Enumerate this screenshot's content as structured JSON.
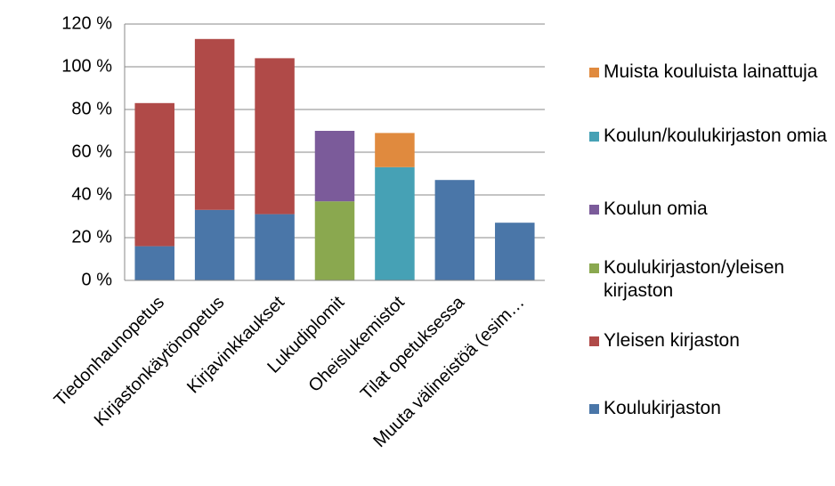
{
  "chart_data": {
    "type": "stacked_bar",
    "categories": [
      "Tiedonhaunopetus",
      "Kirjastonkäytönopetus",
      "Kirjavinkkaukset",
      "Lukudiplomit",
      "Oheislukemistot",
      "Tilat opetuksessa",
      "Muuta välineistöä (esim…"
    ],
    "series": [
      {
        "name": "Koulukirjaston",
        "color": "#4a76a8",
        "values": [
          16,
          33,
          31,
          null,
          null,
          47,
          27
        ]
      },
      {
        "name": "Yleisen kirjaston",
        "color": "#b04a48",
        "values": [
          67,
          80,
          73,
          null,
          null,
          null,
          null
        ]
      },
      {
        "name": "Koulukirjaston/yleisen kirjaston",
        "color": "#8aa84f",
        "values": [
          null,
          null,
          null,
          37,
          null,
          null,
          null
        ]
      },
      {
        "name": "Koulun omia",
        "color": "#7b5b9a",
        "values": [
          null,
          null,
          null,
          33,
          null,
          null,
          null
        ]
      },
      {
        "name": "Koulun/koulukirjaston omia",
        "color": "#46a1b5",
        "values": [
          null,
          null,
          null,
          null,
          53,
          null,
          null
        ]
      },
      {
        "name": "Muista kouluista lainattuja",
        "color": "#e08a3e",
        "values": [
          null,
          null,
          null,
          null,
          16,
          null,
          null
        ]
      }
    ],
    "ylim": [
      0,
      120
    ],
    "yticks": [
      {
        "value": 0,
        "label": "0 %"
      },
      {
        "value": 20,
        "label": "20 %"
      },
      {
        "value": 40,
        "label": "40 %"
      },
      {
        "value": 60,
        "label": "60 %"
      },
      {
        "value": 80,
        "label": "80 %"
      },
      {
        "value": 100,
        "label": "100 %"
      },
      {
        "value": 120,
        "label": "120 %"
      }
    ],
    "grid": true,
    "legend": "right"
  }
}
